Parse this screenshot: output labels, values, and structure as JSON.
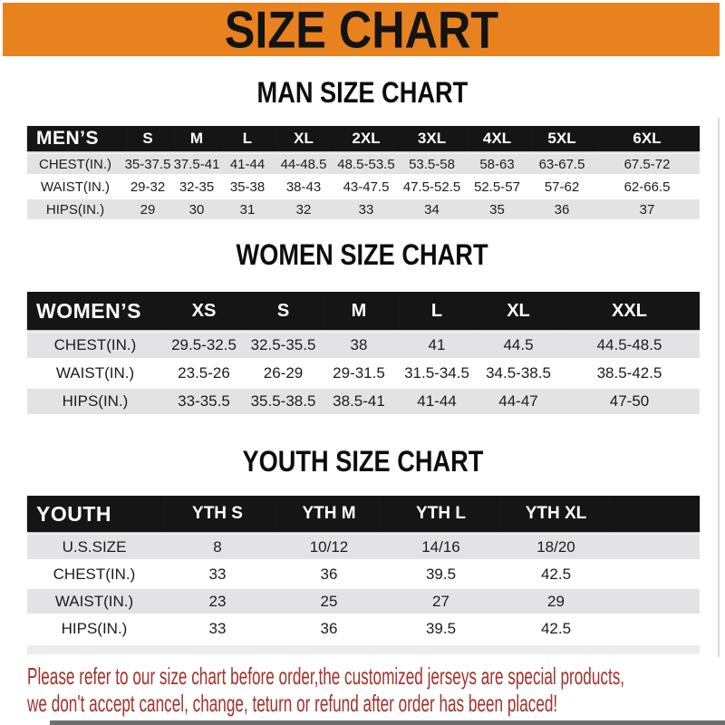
{
  "banner": {
    "title": "SIZE CHART"
  },
  "sections": {
    "men": {
      "heading": "MAN SIZE CHART",
      "header_label": "MEN’S",
      "columns": [
        "S",
        "M",
        "L",
        "XL",
        "2XL",
        "3XL",
        "4XL",
        "5XL",
        "6XL"
      ],
      "rows": [
        {
          "label": "CHEST(IN.)",
          "values": [
            "35-37.5",
            "37.5-41",
            "41-44",
            "44-48.5",
            "48.5-53.5",
            "53.5-58",
            "58-63",
            "63-67.5",
            "67.5-72"
          ]
        },
        {
          "label": "WAIST(IN.)",
          "values": [
            "29-32",
            "32-35",
            "35-38",
            "38-43",
            "43-47.5",
            "47.5-52.5",
            "52.5-57",
            "57-62",
            "62-66.5"
          ]
        },
        {
          "label": "HIPS(IN.)",
          "values": [
            "29",
            "30",
            "31",
            "32",
            "33",
            "34",
            "35",
            "36",
            "37"
          ]
        }
      ]
    },
    "women": {
      "heading": "WOMEN SIZE CHART",
      "header_label": "WOMEN’S",
      "columns": [
        "XS",
        "S",
        "M",
        "L",
        "XL",
        "XXL"
      ],
      "rows": [
        {
          "label": "CHEST(IN.)",
          "values": [
            "29.5-32.5",
            "32.5-35.5",
            "38",
            "41",
            "44.5",
            "44.5-48.5"
          ]
        },
        {
          "label": "WAIST(IN.)",
          "values": [
            "23.5-26",
            "26-29",
            "29-31.5",
            "31.5-34.5",
            "34.5-38.5",
            "38.5-42.5"
          ]
        },
        {
          "label": "HIPS(IN.)",
          "values": [
            "33-35.5",
            "35.5-38.5",
            "38.5-41",
            "41-44",
            "44-47",
            "47-50"
          ]
        }
      ]
    },
    "youth": {
      "heading": "YOUTH SIZE CHART",
      "header_label": "YOUTH",
      "columns": [
        "YTH S",
        "YTH M",
        "YTH L",
        "YTH XL"
      ],
      "rows": [
        {
          "label": "U.S.SIZE",
          "values": [
            "8",
            "10/12",
            "14/16",
            "18/20"
          ]
        },
        {
          "label": "CHEST(IN.)",
          "values": [
            "33",
            "36",
            "39.5",
            "42.5"
          ]
        },
        {
          "label": "WAIST(IN.)",
          "values": [
            "23",
            "25",
            "27",
            "29"
          ]
        },
        {
          "label": "HIPS(IN.)",
          "values": [
            "33",
            "36",
            "39.5",
            "42.5"
          ]
        }
      ]
    }
  },
  "footer": {
    "line1": "Please refer to our size chart before order,the customized jerseys are special products,",
    "line2": "we don't accept cancel, change, teturn or refund after order has been placed!"
  },
  "colors": {
    "banner_orange": "#E8821E",
    "header_black": "#151515",
    "row_gray": "#E3E3E5",
    "note_red": "#A4312B"
  }
}
